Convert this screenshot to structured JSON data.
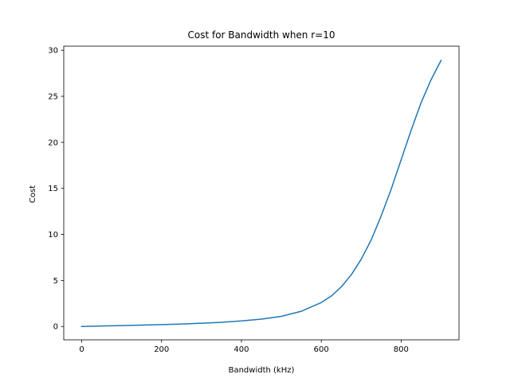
{
  "chart_data": {
    "type": "line",
    "title": "Cost for Bandwidth when r=10",
    "xlabel": "Bandwidth (kHz)",
    "ylabel": "Cost",
    "xlim": [
      -45,
      945
    ],
    "ylim": [
      -1.45,
      30.45
    ],
    "xticks": [
      0,
      200,
      400,
      600,
      800
    ],
    "yticks": [
      0,
      5,
      10,
      15,
      20,
      25,
      30
    ],
    "grid": false,
    "series": [
      {
        "color": "#1f77b4",
        "x": [
          0,
          50,
          100,
          150,
          200,
          250,
          300,
          350,
          400,
          450,
          500,
          550,
          600,
          625,
          650,
          675,
          700,
          725,
          750,
          775,
          800,
          825,
          850,
          875,
          900
        ],
        "y": [
          0.0,
          0.05,
          0.1,
          0.15,
          0.2,
          0.27,
          0.35,
          0.45,
          0.6,
          0.8,
          1.1,
          1.65,
          2.6,
          3.3,
          4.3,
          5.6,
          7.3,
          9.4,
          12.0,
          14.9,
          18.1,
          21.3,
          24.3,
          26.8,
          28.9
        ]
      }
    ]
  }
}
